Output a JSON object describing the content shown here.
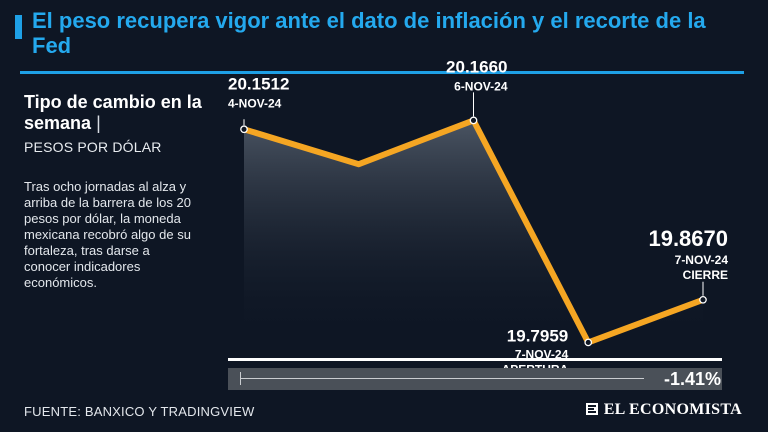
{
  "headline": "El peso recupera vigor ante el dato de inflación y el recorte de la Fed",
  "chart_title": "Tipo de cambio en la semana",
  "chart_title_separator": "|",
  "unit": "PESOS POR DÓLAR",
  "description": "Tras ocho jornadas al alza y arriba de la barrera de los 20 pesos por dólar, la moneda mexicana recobró algo de su fortaleza, tras darse a conocer indicadores económicos.",
  "change": "-1.41%",
  "source": "FUENTE: BANXICO Y TRADINGVIEW",
  "brand": "EL ECONOMISTA",
  "colors": {
    "line": "#f5a623",
    "headline": "#24a9ee",
    "background": "#0e1624",
    "area_top": "#4e5866"
  },
  "chart_data": {
    "type": "area",
    "title": "Tipo de cambio en la semana",
    "ylabel": "PESOS POR DÓLAR",
    "ylim": [
      19.7,
      20.2
    ],
    "points": [
      {
        "x": 0,
        "value": 20.1512,
        "value_label": "20.1512",
        "date": "4-NOV-24",
        "note": ""
      },
      {
        "x": 1,
        "value": 20.093,
        "value_label": "",
        "date": "",
        "note": ""
      },
      {
        "x": 2,
        "value": 20.166,
        "value_label": "20.1660",
        "date": "6-NOV-24",
        "note": ""
      },
      {
        "x": 3,
        "value": 19.7959,
        "value_label": "19.7959",
        "date": "7-NOV-24",
        "note": "APERTURA"
      },
      {
        "x": 4,
        "value": 19.867,
        "value_label": "19.8670",
        "date": "7-NOV-24",
        "note": "CIERRE"
      }
    ]
  }
}
